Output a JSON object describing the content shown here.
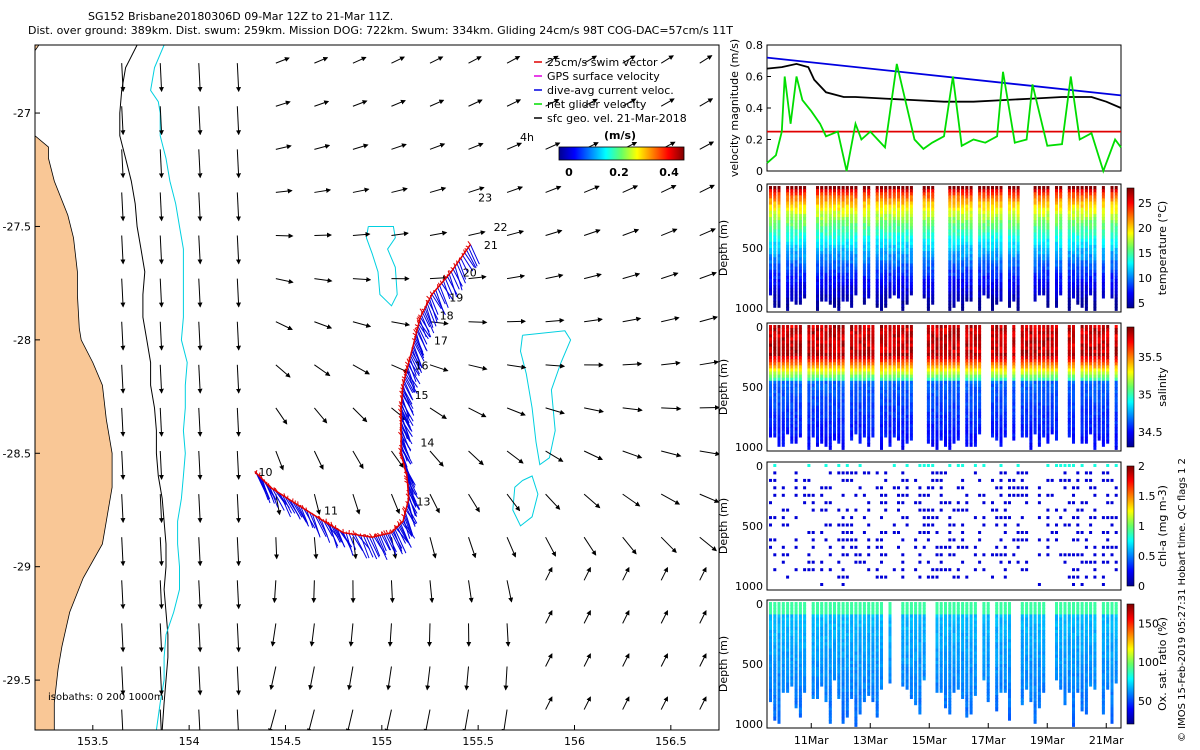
{
  "title_line1": "SG152 Brisbane20180306D 09-Mar 12Z to 21-Mar 11Z.",
  "title_line2": "Dist. over ground: 389km. Dist. swum: 259km. Mission DOG: 722km. Swum: 334km. Gliding 24cm/s 98T COG-DAC=57cm/s 11T",
  "credit": "© IMOS 15-Feb-2019 05:27:31 Hobart time. QC flags 1  2",
  "colors": {
    "land": "#F9C796",
    "isobath_200": "#00D0E0",
    "isobath_1000": "#000000",
    "swim": "#E00000",
    "gps": "#E000E0",
    "dac": "#0000E0",
    "net": "#00DD00",
    "sfc": "#000000"
  },
  "chart_data": [
    {
      "type": "map",
      "xlim": [
        153.2,
        156.75
      ],
      "ylim": [
        -29.72,
        -26.7
      ],
      "xticks": [
        153.5,
        154,
        154.5,
        155,
        155.5,
        156,
        156.5
      ],
      "xtick_labels": [
        "153.5",
        "154",
        "154.5",
        "155",
        "155.5",
        "156",
        "156.5"
      ],
      "yticks": [
        -27,
        -27.5,
        -28,
        -28.5,
        -29,
        -29.5
      ],
      "ytick_labels": [
        "-27",
        "-27.5",
        "-28",
        "-28.5",
        "-29",
        "-29.5"
      ],
      "legend": [
        {
          "label": "25cm/s swim vector",
          "color": "#E00000"
        },
        {
          "label": "GPS surface velocity",
          "color": "#E000E0"
        },
        {
          "label": "dive-avg current veloc.",
          "color": "#0000E0"
        },
        {
          "label": "net glider velocity",
          "color": "#00DD00"
        },
        {
          "label": "sfc geo. vel. 21-Mar-2018",
          "color": "#000000"
        }
      ],
      "legend_extra": "4h",
      "colorbar": {
        "label": "(m/s)",
        "ticks": [
          "0",
          "0.2",
          "0.4"
        ],
        "range": [
          0,
          0.5
        ]
      },
      "isobaths_label": "isobaths: 0   200  1000m",
      "coast": [
        [
          -26.7,
          153.22
        ],
        [
          -26.85,
          153.1
        ],
        [
          -27.0,
          153.06
        ],
        [
          -27.15,
          153.27
        ],
        [
          -27.2,
          153.27
        ],
        [
          -27.3,
          153.3
        ],
        [
          -27.45,
          153.37
        ],
        [
          -27.55,
          153.4
        ],
        [
          -27.7,
          153.42
        ],
        [
          -27.8,
          153.42
        ],
        [
          -27.95,
          153.43
        ],
        [
          -28.0,
          153.44
        ],
        [
          -28.1,
          153.5
        ],
        [
          -28.2,
          153.55
        ],
        [
          -28.35,
          153.57
        ],
        [
          -28.5,
          153.6
        ],
        [
          -28.65,
          153.6
        ],
        [
          -28.8,
          153.57
        ],
        [
          -28.9,
          153.55
        ],
        [
          -29.05,
          153.45
        ],
        [
          -29.2,
          153.38
        ],
        [
          -29.35,
          153.34
        ],
        [
          -29.45,
          153.32
        ],
        [
          -29.6,
          153.3
        ],
        [
          -29.72,
          153.3
        ]
      ],
      "isobath_1000": [
        [
          -26.7,
          153.73
        ],
        [
          -26.8,
          153.67
        ],
        [
          -26.9,
          153.65
        ],
        [
          -27.0,
          153.64
        ],
        [
          -27.1,
          153.64
        ],
        [
          -27.2,
          153.67
        ],
        [
          -27.3,
          153.7
        ],
        [
          -27.4,
          153.72
        ],
        [
          -27.5,
          153.73
        ],
        [
          -27.6,
          153.75
        ],
        [
          -27.7,
          153.77
        ],
        [
          -27.8,
          153.76
        ],
        [
          -27.9,
          153.76
        ],
        [
          -28.0,
          153.78
        ],
        [
          -28.1,
          153.8
        ],
        [
          -28.2,
          153.8
        ],
        [
          -28.3,
          153.82
        ],
        [
          -28.4,
          153.83
        ],
        [
          -28.5,
          153.83
        ],
        [
          -28.6,
          153.84
        ],
        [
          -28.7,
          153.86
        ],
        [
          -28.8,
          153.87
        ],
        [
          -28.9,
          153.88
        ],
        [
          -29.0,
          153.88
        ],
        [
          -29.1,
          153.87
        ],
        [
          -29.2,
          153.88
        ],
        [
          -29.3,
          153.89
        ],
        [
          -29.4,
          153.89
        ],
        [
          -29.5,
          153.88
        ],
        [
          -29.6,
          153.87
        ],
        [
          -29.72,
          153.86
        ]
      ],
      "isobath_200": [
        [
          -26.7,
          153.87
        ],
        [
          -26.8,
          153.82
        ],
        [
          -26.9,
          153.8
        ],
        [
          -26.95,
          153.84
        ],
        [
          -27.0,
          153.85
        ],
        [
          -27.1,
          153.85
        ],
        [
          -27.2,
          153.88
        ],
        [
          -27.3,
          153.9
        ],
        [
          -27.4,
          153.93
        ],
        [
          -27.5,
          153.95
        ],
        [
          -27.6,
          153.97
        ],
        [
          -27.7,
          153.97
        ],
        [
          -27.8,
          153.97
        ],
        [
          -27.9,
          153.97
        ],
        [
          -28.0,
          153.96
        ],
        [
          -28.1,
          153.99
        ],
        [
          -28.2,
          153.98
        ],
        [
          -28.3,
          153.98
        ],
        [
          -28.4,
          153.97
        ],
        [
          -28.5,
          153.98
        ],
        [
          -28.6,
          153.97
        ],
        [
          -28.7,
          153.96
        ],
        [
          -28.8,
          153.94
        ],
        [
          -28.9,
          153.94
        ],
        [
          -29.0,
          153.95
        ],
        [
          -29.1,
          153.95
        ],
        [
          -29.2,
          153.92
        ],
        [
          -29.3,
          153.88
        ],
        [
          -29.4,
          153.87
        ],
        [
          -29.5,
          153.87
        ],
        [
          -29.6,
          153.85
        ],
        [
          -29.72,
          153.83
        ]
      ],
      "eddies": [
        [
          [
            -27.5,
            154.93
          ],
          [
            -27.5,
            155.06
          ],
          [
            -27.55,
            155.07
          ],
          [
            -27.6,
            155.03
          ],
          [
            -27.68,
            155.07
          ],
          [
            -27.8,
            155.08
          ],
          [
            -27.85,
            155.05
          ],
          [
            -27.8,
            154.99
          ],
          [
            -27.7,
            154.98
          ],
          [
            -27.62,
            154.95
          ],
          [
            -27.55,
            154.92
          ],
          [
            -27.5,
            154.93
          ]
        ],
        [
          [
            -27.98,
            155.73
          ],
          [
            -27.96,
            155.95
          ],
          [
            -28.0,
            155.98
          ],
          [
            -28.1,
            155.93
          ],
          [
            -28.22,
            155.88
          ],
          [
            -28.4,
            155.9
          ],
          [
            -28.52,
            155.87
          ],
          [
            -28.55,
            155.82
          ],
          [
            -28.45,
            155.8
          ],
          [
            -28.3,
            155.78
          ],
          [
            -28.15,
            155.75
          ],
          [
            -28.05,
            155.72
          ],
          [
            -27.98,
            155.73
          ]
        ],
        [
          [
            -28.62,
            155.73
          ],
          [
            -28.6,
            155.78
          ],
          [
            -28.68,
            155.81
          ],
          [
            -28.78,
            155.78
          ],
          [
            -28.82,
            155.72
          ],
          [
            -28.75,
            155.68
          ],
          [
            -28.65,
            155.69
          ],
          [
            -28.62,
            155.73
          ]
        ]
      ],
      "track": [
        [
          -27.58,
          155.46
        ],
        [
          -27.7,
          155.36
        ],
        [
          -27.8,
          155.26
        ],
        [
          -27.9,
          155.2
        ],
        [
          -28.0,
          155.17
        ],
        [
          -28.1,
          155.14
        ],
        [
          -28.2,
          155.11
        ],
        [
          -28.3,
          155.1
        ],
        [
          -28.4,
          155.1
        ],
        [
          -28.5,
          155.1
        ],
        [
          -28.6,
          155.13
        ],
        [
          -28.7,
          155.14
        ],
        [
          -28.8,
          155.11
        ],
        [
          -28.85,
          155.05
        ],
        [
          -28.87,
          154.95
        ],
        [
          -28.85,
          154.8
        ],
        [
          -28.8,
          154.7
        ],
        [
          -28.72,
          154.55
        ],
        [
          -28.65,
          154.42
        ],
        [
          -28.58,
          154.34
        ]
      ],
      "track_labels": [
        {
          "t": "10",
          "lat": -28.6,
          "lon": 154.36
        },
        {
          "t": "11",
          "lat": -28.77,
          "lon": 154.7
        },
        {
          "t": "13",
          "lat": -28.73,
          "lon": 155.18
        },
        {
          "t": "14",
          "lat": -28.47,
          "lon": 155.2
        },
        {
          "t": "15",
          "lat": -28.26,
          "lon": 155.17
        },
        {
          "t": "16",
          "lat": -28.13,
          "lon": 155.17
        },
        {
          "t": "17",
          "lat": -28.02,
          "lon": 155.27
        },
        {
          "t": "18",
          "lat": -27.91,
          "lon": 155.3
        },
        {
          "t": "19",
          "lat": -27.83,
          "lon": 155.35
        },
        {
          "t": "20",
          "lat": -27.72,
          "lon": 155.42
        },
        {
          "t": "21",
          "lat": -27.6,
          "lon": 155.53
        },
        {
          "t": "22",
          "lat": -27.52,
          "lon": 155.58
        },
        {
          "t": "23",
          "lat": -27.39,
          "lon": 155.5
        }
      ]
    },
    {
      "type": "line",
      "ylabel": "velocity magnitude (m/s)",
      "ylim": [
        0,
        0.8
      ],
      "yticks": [
        "0",
        "0.2",
        "0.4",
        "0.6",
        "0.8"
      ],
      "x": "days since 09-Mar 12Z",
      "series": [
        {
          "color": "#0000E0",
          "x": [
            0,
            12
          ],
          "values": [
            0.72,
            0.48
          ]
        },
        {
          "color": "#E00000",
          "x": [
            0,
            12
          ],
          "values": [
            0.25,
            0.25
          ]
        },
        {
          "color": "#000000",
          "x": [
            0,
            0.5,
            1,
            1.4,
            1.6,
            2,
            2.6,
            3,
            4,
            5,
            6,
            7,
            8,
            9,
            10,
            11,
            11.5,
            12
          ],
          "values": [
            0.65,
            0.66,
            0.68,
            0.66,
            0.58,
            0.5,
            0.47,
            0.47,
            0.46,
            0.45,
            0.44,
            0.44,
            0.45,
            0.46,
            0.47,
            0.47,
            0.44,
            0.4
          ]
        },
        {
          "color": "#00DD00",
          "x": [
            0,
            0.3,
            0.5,
            0.6,
            0.8,
            1.0,
            1.2,
            1.5,
            1.8,
            2.0,
            2.4,
            2.7,
            3.0,
            3.2,
            3.5,
            4.0,
            4.4,
            5.0,
            5.3,
            5.6,
            6.0,
            6.3,
            6.6,
            7.0,
            7.4,
            7.8,
            8.0,
            8.4,
            8.8,
            9.0,
            9.5,
            10.0,
            10.3,
            10.6,
            11.0,
            11.4,
            11.8,
            12.0
          ],
          "values": [
            0.05,
            0.1,
            0.25,
            0.6,
            0.3,
            0.6,
            0.45,
            0.38,
            0.3,
            0.22,
            0.25,
            0.0,
            0.3,
            0.2,
            0.25,
            0.15,
            0.68,
            0.2,
            0.14,
            0.18,
            0.22,
            0.6,
            0.16,
            0.2,
            0.18,
            0.22,
            0.63,
            0.18,
            0.2,
            0.55,
            0.16,
            0.17,
            0.6,
            0.2,
            0.24,
            0.0,
            0.2,
            0.15
          ]
        }
      ]
    },
    {
      "type": "heatmap",
      "ylabel": "Depth (m)",
      "ylim": [
        1000,
        0
      ],
      "yticks": [
        "0",
        "500",
        "1000"
      ],
      "colorbar_label": "temperature (°C)",
      "cbar_ticks": [
        "5",
        "10",
        "15",
        "20",
        "25"
      ],
      "range": [
        4,
        28
      ]
    },
    {
      "type": "heatmap",
      "ylabel": "Depth (m)",
      "ylim": [
        1000,
        0
      ],
      "yticks": [
        "0",
        "500",
        "1000"
      ],
      "colorbar_label": "salinity",
      "cbar_ticks": [
        "34.5",
        "35",
        "35.5"
      ],
      "range": [
        34.3,
        35.9
      ]
    },
    {
      "type": "scatter",
      "ylabel": "Depth (m)",
      "ylim": [
        1000,
        0
      ],
      "yticks": [
        "0",
        "500",
        "1000"
      ],
      "colorbar_label": "chl-a (mg m-3)",
      "cbar_ticks": [
        "0",
        "0.5",
        "1",
        "1.5",
        "2"
      ],
      "range": [
        0,
        2
      ]
    },
    {
      "type": "heatmap",
      "ylabel": "Depth (m)",
      "ylim": [
        1000,
        0
      ],
      "yticks": [
        "0",
        "500",
        "1000"
      ],
      "colorbar_label": "Ox. sat. ratio (%)",
      "cbar_ticks": [
        "50",
        "100",
        "150"
      ],
      "range": [
        20,
        175
      ]
    },
    {
      "type": "axis",
      "xticks": [
        "11Mar",
        "13Mar",
        "15Mar",
        "17Mar",
        "19Mar",
        "21Mar"
      ]
    }
  ]
}
